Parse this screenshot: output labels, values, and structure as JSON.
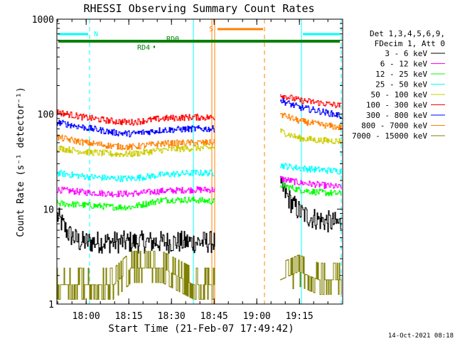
{
  "chart_data": {
    "type": "line",
    "title": "RHESSI Observing Summary Count Rates",
    "xlabel": "Start Time (21-Feb-07 17:49:42)",
    "ylabel": "Count Rate (s⁻¹ detector⁻¹)",
    "yscale": "log",
    "ylim": [
      1,
      1000
    ],
    "xlim_minutes_after_start": [
      0,
      100.5
    ],
    "x_tick_labels": [
      "18:00",
      "18:15",
      "18:30",
      "18:45",
      "19:00",
      "19:15"
    ],
    "x_tick_minutes_after_start": [
      10.3,
      25.3,
      40.3,
      55.3,
      70.3,
      85.3
    ],
    "y_tick_labels": [
      "1",
      "10",
      "100",
      "1000"
    ],
    "y_tick_values": [
      1,
      10,
      100,
      1000
    ],
    "legend_location": "right",
    "legend_header": [
      "Det 1,3,4,5,6,9,",
      "FDecim 1, Att 0"
    ],
    "timestamp": "14-Oct-2021 08:18",
    "data_gaps_minutes": [
      [
        55.5,
        78.5
      ]
    ],
    "series": [
      {
        "name": "3 - 6 keV",
        "color": "#000000",
        "points": [
          [
            0,
            8.5
          ],
          [
            4,
            5.5
          ],
          [
            8,
            4.5
          ],
          [
            12,
            4.5
          ],
          [
            18,
            4.5
          ],
          [
            26,
            4.5
          ],
          [
            33,
            4.5
          ],
          [
            40,
            4.5
          ],
          [
            48,
            4.5
          ],
          [
            55.5,
            4.5
          ],
          [
            78.5,
            17
          ],
          [
            80,
            15
          ],
          [
            83,
            11
          ],
          [
            86,
            9
          ],
          [
            89,
            8.2
          ],
          [
            93,
            7.6
          ],
          [
            97,
            7.2
          ],
          [
            100,
            7
          ]
        ]
      },
      {
        "name": "6 - 12 keV",
        "color": "#ff00ff",
        "points": [
          [
            0,
            16
          ],
          [
            10,
            15
          ],
          [
            20,
            14.5
          ],
          [
            26,
            14.5
          ],
          [
            37,
            15.5
          ],
          [
            48,
            16
          ],
          [
            55.5,
            16
          ],
          [
            78.5,
            21
          ],
          [
            85,
            19
          ],
          [
            92,
            18
          ],
          [
            100,
            17
          ]
        ]
      },
      {
        "name": "12 - 25 keV",
        "color": "#00ff00",
        "points": [
          [
            0,
            11.5
          ],
          [
            10,
            11
          ],
          [
            20,
            10.5
          ],
          [
            26,
            10.5
          ],
          [
            37,
            12.5
          ],
          [
            48,
            12.5
          ],
          [
            55.5,
            12
          ],
          [
            78.5,
            18
          ],
          [
            85,
            16
          ],
          [
            92,
            15
          ],
          [
            100,
            14.5
          ]
        ]
      },
      {
        "name": "25 - 50 keV",
        "color": "#00ffff",
        "points": [
          [
            0,
            24
          ],
          [
            10,
            22
          ],
          [
            20,
            21
          ],
          [
            26,
            21
          ],
          [
            37,
            23
          ],
          [
            48,
            24
          ],
          [
            55.5,
            24
          ],
          [
            78.5,
            29
          ],
          [
            85,
            27
          ],
          [
            92,
            26
          ],
          [
            100,
            25
          ]
        ]
      },
      {
        "name": "50 - 100 keV",
        "color": "#cccc00",
        "points": [
          [
            0,
            44
          ],
          [
            10,
            40
          ],
          [
            20,
            38
          ],
          [
            26,
            38
          ],
          [
            37,
            42
          ],
          [
            48,
            44
          ],
          [
            55.5,
            44
          ],
          [
            78.5,
            66
          ],
          [
            85,
            56
          ],
          [
            92,
            53
          ],
          [
            100,
            52
          ]
        ]
      },
      {
        "name": "100 - 300 keV",
        "color": "#ff0000",
        "points": [
          [
            0,
            105
          ],
          [
            10,
            92
          ],
          [
            20,
            84
          ],
          [
            26,
            82
          ],
          [
            37,
            90
          ],
          [
            48,
            93
          ],
          [
            55.5,
            92
          ],
          [
            78.5,
            160
          ],
          [
            85,
            140
          ],
          [
            92,
            132
          ],
          [
            100,
            122
          ]
        ]
      },
      {
        "name": "300 - 800 keV",
        "color": "#0000ff",
        "points": [
          [
            0,
            82
          ],
          [
            10,
            72
          ],
          [
            20,
            64
          ],
          [
            26,
            62
          ],
          [
            37,
            68
          ],
          [
            48,
            70
          ],
          [
            55.5,
            70
          ],
          [
            78.5,
            140
          ],
          [
            85,
            118
          ],
          [
            92,
            108
          ],
          [
            100,
            96
          ]
        ]
      },
      {
        "name": "800 - 7000 keV",
        "color": "#ff8000",
        "points": [
          [
            0,
            57
          ],
          [
            10,
            50
          ],
          [
            20,
            46
          ],
          [
            26,
            45
          ],
          [
            37,
            49
          ],
          [
            48,
            50
          ],
          [
            55.5,
            50
          ],
          [
            78.5,
            100
          ],
          [
            85,
            85
          ],
          [
            92,
            78
          ],
          [
            100,
            72
          ]
        ]
      },
      {
        "name": "7000 - 15000 keV",
        "color": "#808000",
        "points": [
          [
            0,
            1.6
          ],
          [
            10,
            1.6
          ],
          [
            20,
            1.6
          ],
          [
            26,
            2.4
          ],
          [
            37,
            2.4
          ],
          [
            48,
            1.6
          ],
          [
            55.5,
            1.6
          ],
          [
            78.5,
            1.8
          ],
          [
            85,
            2.2
          ],
          [
            92,
            1.8
          ],
          [
            100,
            1.8
          ]
        ]
      }
    ],
    "state_bars": [
      {
        "label": "N",
        "color": "#00ffff",
        "intervals": [
          [
            0,
            11.5
          ],
          [
            86,
            100
          ]
        ]
      },
      {
        "label": "S",
        "color": "#ff8000",
        "intervals": [
          [
            56,
            73
          ]
        ]
      },
      {
        "label": "RD0",
        "color": "#008000",
        "intervals": [
          [
            0,
            100
          ]
        ]
      },
      {
        "label": "RD4",
        "color": "#008000",
        "intervals": [
          [
            33.5,
            35
          ]
        ]
      }
    ],
    "vertical_markers": [
      {
        "color": "#00ffff",
        "style": "solid",
        "x": 0
      },
      {
        "color": "#00ffff",
        "style": "dashed",
        "x": 11.5
      },
      {
        "color": "#00ffff",
        "style": "solid",
        "x": 48
      },
      {
        "color": "#ff8000",
        "style": "solid",
        "x": 54.5
      },
      {
        "color": "#ff8000",
        "style": "solid",
        "x": 55.5
      },
      {
        "color": "#ff8000",
        "style": "dashed",
        "x": 73
      },
      {
        "color": "#00ffff",
        "style": "solid",
        "x": 86
      },
      {
        "color": "#00ffff",
        "style": "dashed",
        "x": 100
      }
    ]
  }
}
